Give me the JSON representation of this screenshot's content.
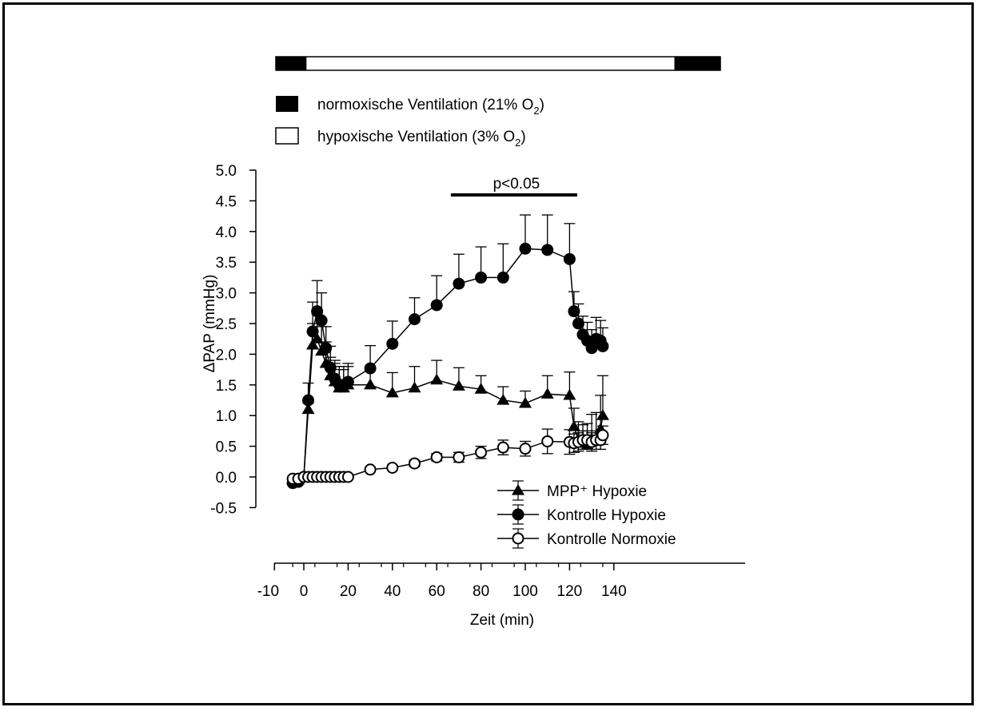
{
  "chart_data": {
    "type": "line",
    "ylabel": "ΔPAP (mmHg)",
    "xlabel": "Zeit (min)",
    "xlim": [
      -10,
      140
    ],
    "ylim": [
      -0.5,
      5.0
    ],
    "x_ticks": [
      "-10",
      "0",
      "20",
      "40",
      "60",
      "80",
      "100",
      "120",
      "140"
    ],
    "y_ticks": [
      "5.0",
      "4.5",
      "4.0",
      "3.5",
      "3.0",
      "2.5",
      "2.0",
      "1.5",
      "1.0",
      "0.5",
      "0.0",
      "-0.5"
    ],
    "grid": false,
    "legend_position": "bottom-right",
    "ventilation_bar": {
      "segments": [
        {
          "type": "normoxic",
          "start": -10,
          "end": 0
        },
        {
          "type": "hypoxic",
          "start": 0,
          "end": 120
        },
        {
          "type": "normoxic",
          "start": 120,
          "end": 135
        }
      ],
      "legend": {
        "normoxic_text": "normoxische Ventilation (21% O",
        "normoxic_sub": "2",
        "normoxic_end": ")",
        "hypoxic_text": "hypoxische Ventilation (3% O",
        "hypoxic_sub": "2",
        "hypoxic_end": ")"
      }
    },
    "significance": {
      "label": "p<0.05",
      "x_start": 70,
      "x_end": 122
    },
    "series": [
      {
        "name": "MPP⁺ Hypoxie",
        "marker": "triangle",
        "x": [
          -5,
          -2.5,
          0,
          2,
          4,
          6,
          8,
          10,
          12,
          14,
          16,
          18,
          20,
          30,
          40,
          50,
          60,
          70,
          80,
          90,
          100,
          110,
          120,
          122,
          124,
          126,
          128,
          130,
          132,
          134,
          135
        ],
        "y": [
          -0.05,
          -0.05,
          0.0,
          1.1,
          2.15,
          2.25,
          2.05,
          1.85,
          1.65,
          1.55,
          1.45,
          1.45,
          1.5,
          1.5,
          1.37,
          1.45,
          1.58,
          1.48,
          1.43,
          1.25,
          1.2,
          1.35,
          1.33,
          0.82,
          0.6,
          0.55,
          0.52,
          0.62,
          0.6,
          0.78,
          1.0
        ],
        "err": [
          0,
          0,
          0,
          0.1,
          0.35,
          0.4,
          0.4,
          0.35,
          0.3,
          0.3,
          0.3,
          0.3,
          0.3,
          0.25,
          0.33,
          0.35,
          0.32,
          0.3,
          0.22,
          0.22,
          0.2,
          0.3,
          0.38,
          0.3,
          0.3,
          0.3,
          0.35,
          0.4,
          0.45,
          0.55,
          0.65
        ]
      },
      {
        "name": "Kontrolle Hypoxie",
        "marker": "filled-circle",
        "x": [
          -5,
          -2.5,
          0,
          2,
          4,
          6,
          8,
          10,
          12,
          14,
          16,
          18,
          20,
          30,
          40,
          50,
          60,
          70,
          80,
          90,
          100,
          110,
          120,
          122,
          124,
          126,
          128,
          130,
          132,
          134,
          135
        ],
        "y": [
          -0.1,
          -0.08,
          0.0,
          1.25,
          2.37,
          2.7,
          2.55,
          2.1,
          1.78,
          1.6,
          1.5,
          1.5,
          1.55,
          1.77,
          2.17,
          2.57,
          2.8,
          3.15,
          3.25,
          3.25,
          3.72,
          3.7,
          3.55,
          2.7,
          2.5,
          2.32,
          2.22,
          2.1,
          2.25,
          2.22,
          2.13
        ],
        "err": [
          0,
          0,
          0,
          0.28,
          0.48,
          0.5,
          0.45,
          0.35,
          0.35,
          0.3,
          0.3,
          0.3,
          0.3,
          0.37,
          0.37,
          0.35,
          0.48,
          0.48,
          0.5,
          0.55,
          0.55,
          0.57,
          0.58,
          0.32,
          0.32,
          0.3,
          0.3,
          0.3,
          0.35,
          0.33,
          0.3
        ]
      },
      {
        "name": "Kontrolle Normoxie",
        "marker": "open-circle",
        "x": [
          -5,
          -2.5,
          0,
          2,
          4,
          6,
          8,
          10,
          12,
          14,
          16,
          18,
          20,
          30,
          40,
          50,
          60,
          70,
          80,
          90,
          100,
          110,
          120,
          122,
          124,
          126,
          128,
          130,
          132,
          134,
          135
        ],
        "y": [
          -0.03,
          -0.03,
          0.0,
          0.0,
          0.0,
          0.0,
          0.0,
          0.0,
          0.0,
          0.0,
          0.0,
          0.0,
          0.0,
          0.12,
          0.15,
          0.22,
          0.32,
          0.32,
          0.4,
          0.48,
          0.46,
          0.58,
          0.57,
          0.55,
          0.57,
          0.6,
          0.6,
          0.57,
          0.6,
          0.6,
          0.68
        ],
        "err": [
          0,
          0,
          0,
          0,
          0,
          0,
          0,
          0,
          0,
          0,
          0,
          0,
          0,
          0,
          0,
          0.05,
          0.06,
          0.08,
          0.1,
          0.12,
          0.12,
          0.2,
          0.2,
          0.15,
          0.15,
          0.15,
          0.15,
          0.15,
          0.15,
          0.15,
          0.15
        ]
      }
    ]
  }
}
